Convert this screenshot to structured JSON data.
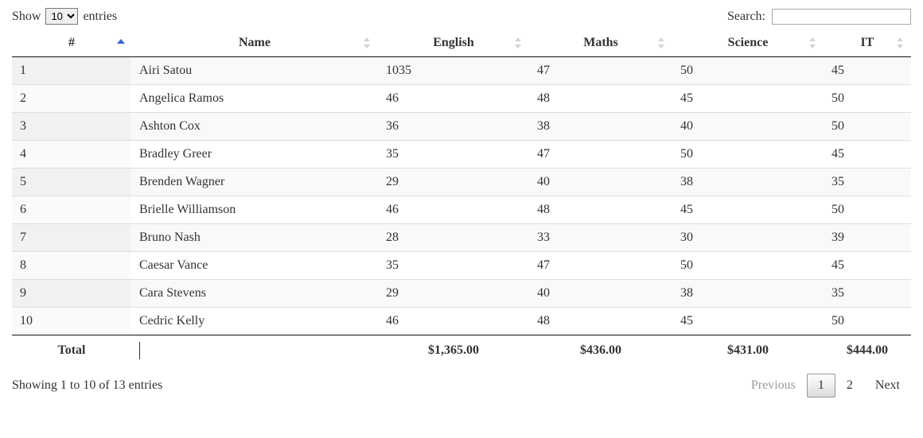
{
  "length": {
    "show": "Show",
    "entries": "entries",
    "value": "10"
  },
  "search": {
    "label": "Search:",
    "value": ""
  },
  "columns": [
    "#",
    "Name",
    "English",
    "Maths",
    "Science",
    "IT"
  ],
  "sorted_col_index": 0,
  "rows": [
    {
      "idx": "1",
      "name": "Airi Satou",
      "english": "1035",
      "maths": "47",
      "science": "50",
      "it": "45"
    },
    {
      "idx": "2",
      "name": "Angelica Ramos",
      "english": "46",
      "maths": "48",
      "science": "45",
      "it": "50"
    },
    {
      "idx": "3",
      "name": "Ashton Cox",
      "english": "36",
      "maths": "38",
      "science": "40",
      "it": "50"
    },
    {
      "idx": "4",
      "name": "Bradley Greer",
      "english": "35",
      "maths": "47",
      "science": "50",
      "it": "45"
    },
    {
      "idx": "5",
      "name": "Brenden Wagner",
      "english": "29",
      "maths": "40",
      "science": "38",
      "it": "35"
    },
    {
      "idx": "6",
      "name": "Brielle Williamson",
      "english": "46",
      "maths": "48",
      "science": "45",
      "it": "50"
    },
    {
      "idx": "7",
      "name": "Bruno Nash",
      "english": "28",
      "maths": "33",
      "science": "30",
      "it": "39"
    },
    {
      "idx": "8",
      "name": "Caesar Vance",
      "english": "35",
      "maths": "47",
      "science": "50",
      "it": "45"
    },
    {
      "idx": "9",
      "name": "Cara Stevens",
      "english": "29",
      "maths": "40",
      "science": "38",
      "it": "35"
    },
    {
      "idx": "10",
      "name": "Cedric Kelly",
      "english": "46",
      "maths": "48",
      "science": "45",
      "it": "50"
    }
  ],
  "footer": {
    "label": "Total",
    "english": "$1,365.00",
    "maths": "$436.00",
    "science": "$431.00",
    "it": "$444.00"
  },
  "info": "Showing 1 to 10 of 13 entries",
  "pagination": {
    "previous": "Previous",
    "next": "Next",
    "pages": [
      "1",
      "2"
    ],
    "current": "1"
  }
}
